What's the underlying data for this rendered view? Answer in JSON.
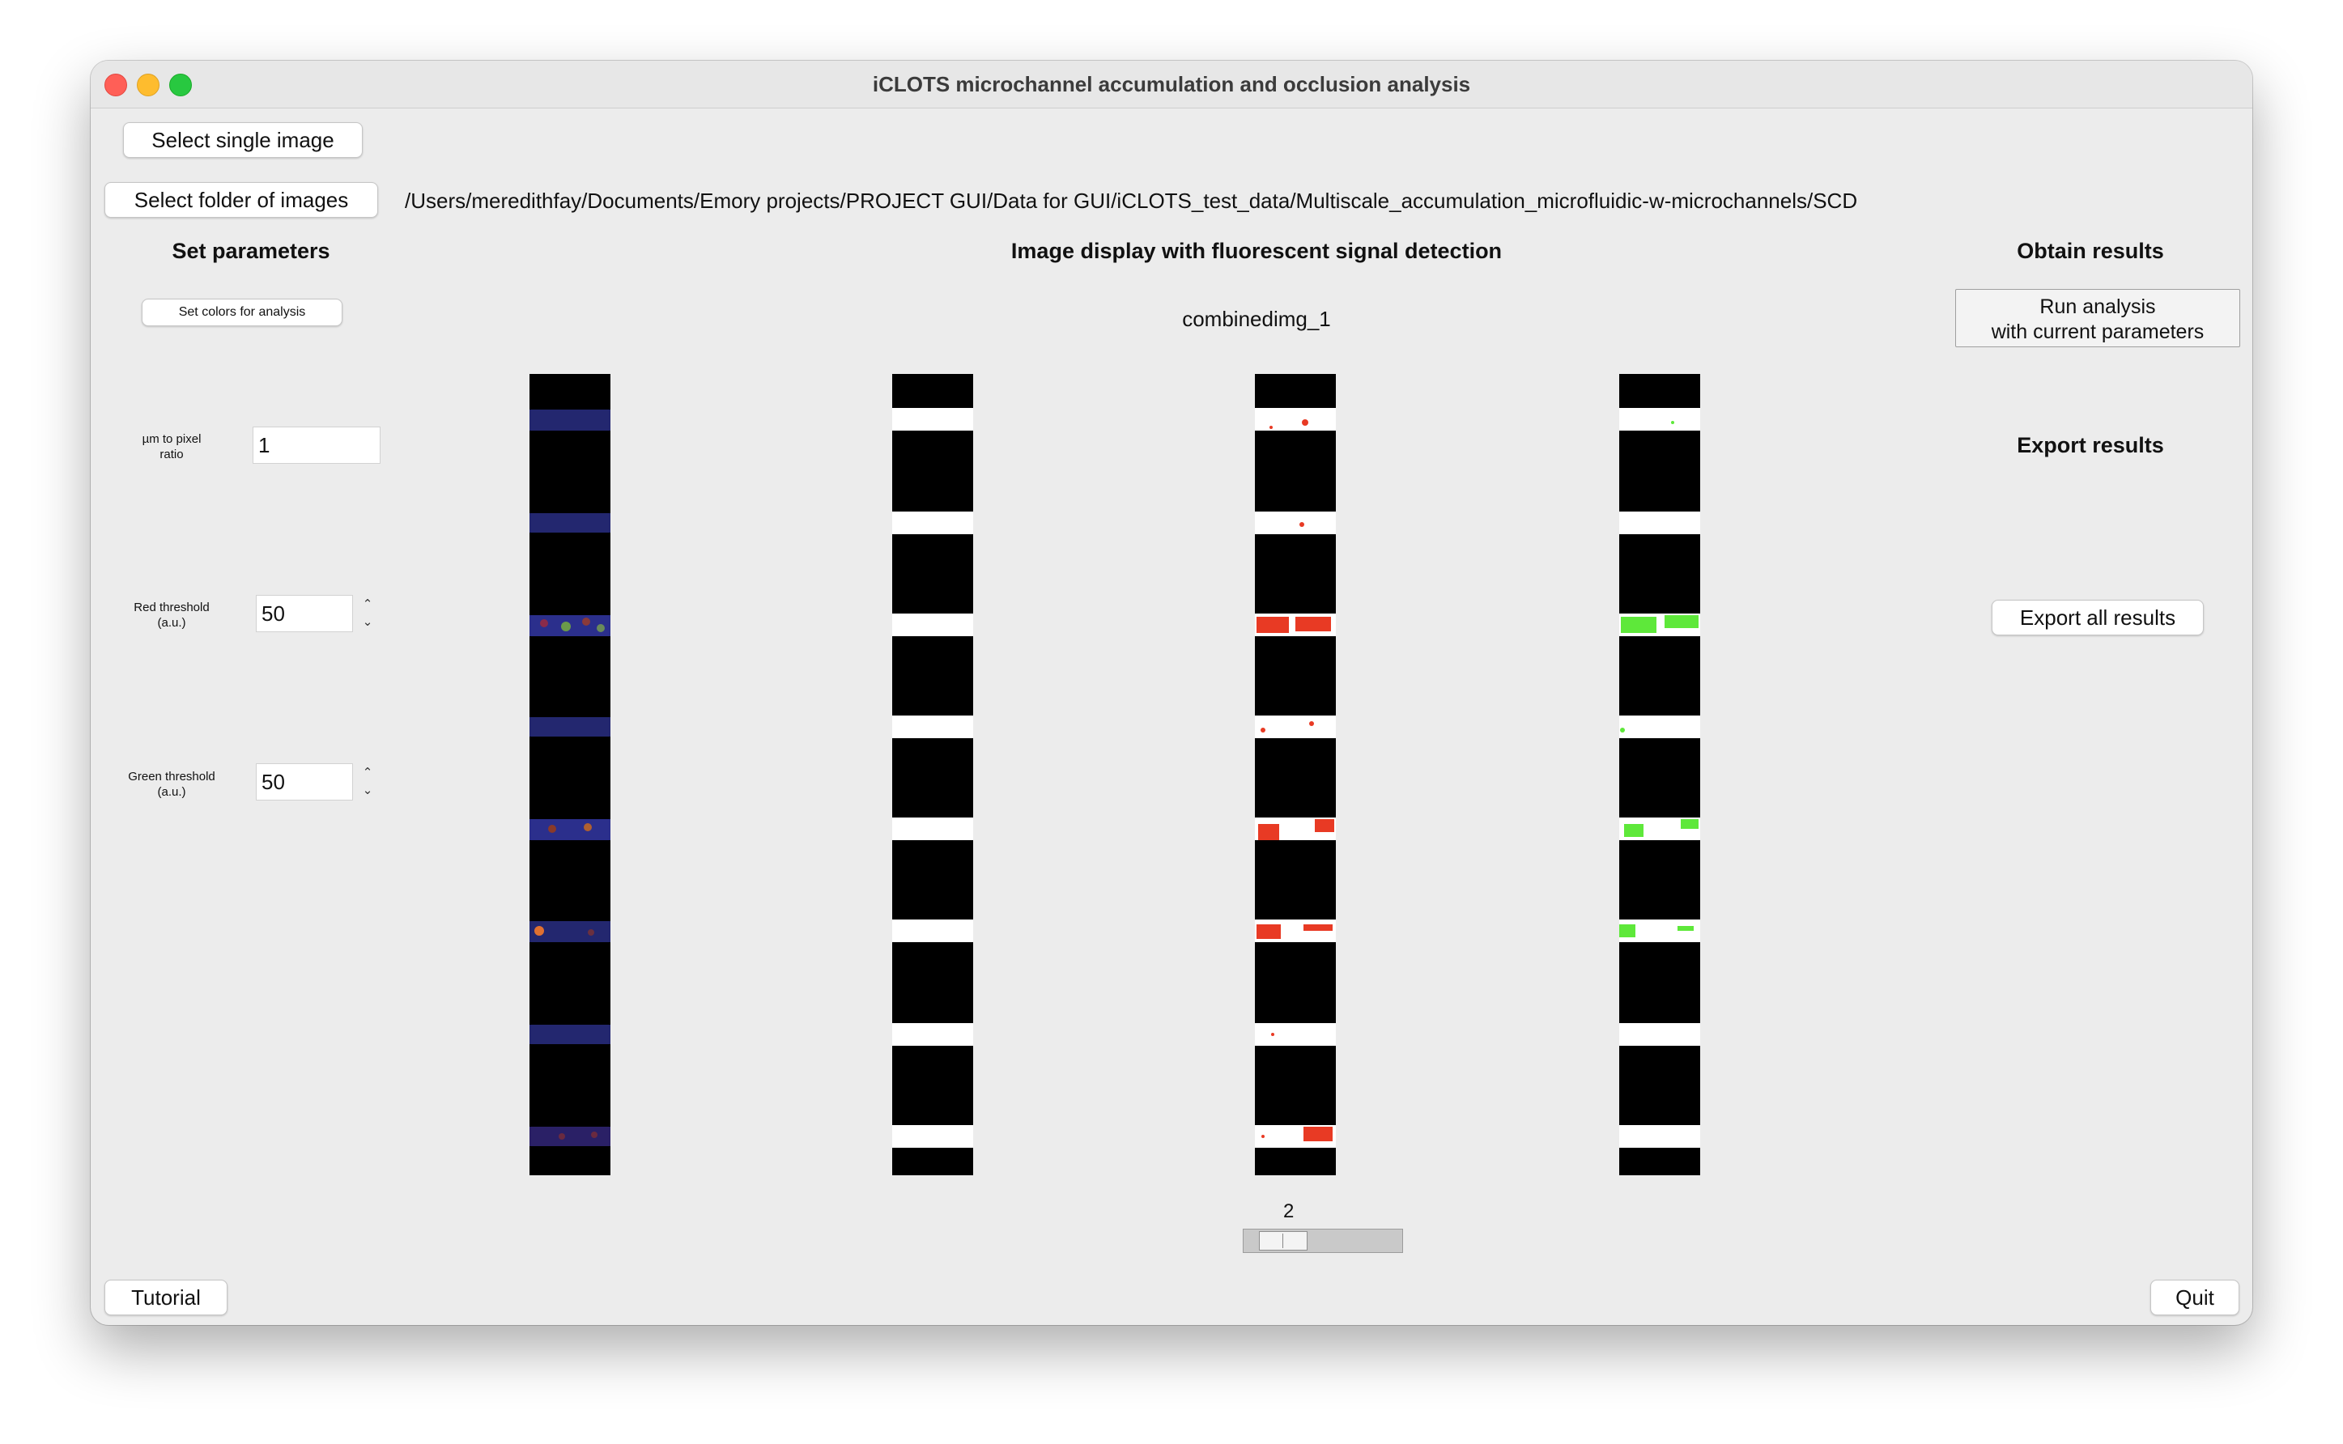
{
  "window": {
    "title": "iCLOTS microchannel accumulation and occlusion analysis"
  },
  "file_selection": {
    "single_image_label": "Select single image",
    "folder_label": "Select folder of images",
    "selected_path": "/Users/meredithfay/Documents/Emory projects/PROJECT GUI/Data for GUI/iCLOTS_test_data/Multiscale_accumulation_microfluidic-w-microchannels/SCD"
  },
  "parameters": {
    "heading": "Set parameters",
    "colors_button_label": "Set colors for analysis",
    "um_to_pixel": {
      "label_line1": "µm to pixel",
      "label_line2": "ratio",
      "value": "1"
    },
    "red_threshold": {
      "label_line1": "Red threshold",
      "label_line2": "(a.u.)",
      "value": "50"
    },
    "green_threshold": {
      "label_line1": "Green threshold",
      "label_line2": "(a.u.)",
      "value": "50"
    },
    "spin_up": "⌃",
    "spin_down": "⌄"
  },
  "display": {
    "heading": "Image display with fluorescent signal detection",
    "image_name": "combinedimg_1",
    "slider_value": "2",
    "panels": [
      "original-composite",
      "channel-mask",
      "red-signal-detection",
      "green-signal-detection"
    ]
  },
  "results": {
    "obtain_heading": "Obtain results",
    "run_label_line1": "Run analysis",
    "run_label_line2": "with current parameters",
    "export_heading": "Export results",
    "export_label": "Export all results"
  },
  "footer": {
    "tutorial_label": "Tutorial",
    "quit_label": "Quit"
  },
  "colors": {
    "close": "#ff5f57",
    "minimize": "#febc2e",
    "maximize": "#28c840",
    "window_bg": "#ececec",
    "red_signal": "#e83a24",
    "green_signal": "#5ee83a",
    "blue_stain": "#2b2f8c"
  }
}
